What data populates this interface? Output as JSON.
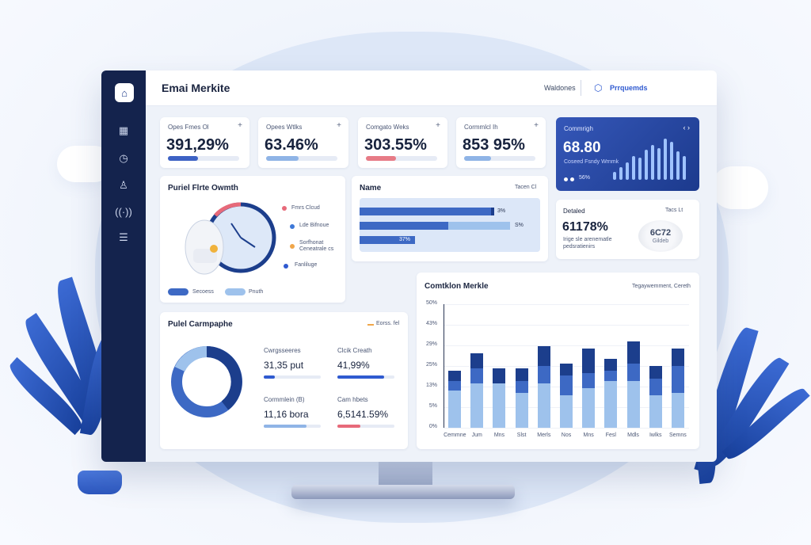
{
  "app": {
    "title": "Emai Merkite"
  },
  "topbar": {
    "link": "Waldones",
    "button": "Prrquemds"
  },
  "kpis": [
    {
      "label": "Opes Fmes Ol",
      "value": "391,29%",
      "progress": 0.42,
      "color": "#3d62c4"
    },
    {
      "label": "Opees Wtlks",
      "value": "63.46%",
      "progress": 0.45,
      "color": "#8fb4e6"
    },
    {
      "label": "Comgato Weks",
      "value": "303.55%",
      "progress": 0.42,
      "color": "#e77b86"
    },
    {
      "label": "Cormmlcl Ih",
      "value": "853 95%",
      "progress": 0.38,
      "color": "#8fb4e6"
    }
  ],
  "featured": {
    "label": "Commrigh",
    "value": "68.80",
    "sub": "Coseed Fsndy Wrnmk",
    "pct": "56%"
  },
  "funnel": {
    "title": "Puriel Flrte Owmth",
    "legend": [
      "Fmrs Clcud",
      "Lde Bifnoue",
      "Sorfhonat Ceneatrale cs",
      "Fanliluge"
    ],
    "legend_colors": [
      "#e76a7a",
      "#3d78d8",
      "#f0a64a",
      "#2f5ad0"
    ],
    "pills": [
      "Secoess",
      "Pnuth"
    ]
  },
  "name_card": {
    "title": "Name",
    "meta": "Tacen Cl",
    "bars": [
      "3%",
      "S%",
      "37%"
    ]
  },
  "detailed": {
    "title": "Detaled",
    "meta": "Tacs Lt",
    "value": "61178%",
    "desc": "Irige sle arenematle pedsratienirs",
    "badge": "6C72",
    "badge_sub": "Gildeb"
  },
  "campaign": {
    "title": "Pulel Carmpaphe",
    "meta": "Eorss. fel",
    "stats": [
      {
        "label": "Cwrgsseeres",
        "value": "31,35 put",
        "progress": 0.2,
        "color": "#2f5ad0"
      },
      {
        "label": "Clcik Creath",
        "value": "41,99%",
        "progress": 0.82,
        "color": "#2f5ad0"
      },
      {
        "label": "Cormmlein (B)",
        "value": "11,16 bora",
        "progress": 0.75,
        "color": "#8fb4e6"
      },
      {
        "label": "Cam hbets",
        "value": "6,5141.59%",
        "progress": 0.4,
        "color": "#e76a7a"
      }
    ]
  },
  "chart": {
    "title": "Comtklon Merkle",
    "meta": "Tegaywemment, Cereth"
  },
  "chart_data": {
    "type": "bar",
    "categories": [
      "Cemmne",
      "Jum",
      "Mns",
      "Slst",
      "Merls",
      "Nos",
      "Mns",
      "Fesl",
      "Mdls",
      "Iwlks",
      "Semns"
    ],
    "series": [
      {
        "values": [
          15,
          18,
          18,
          14,
          18,
          13,
          16,
          19,
          19,
          13,
          14
        ]
      },
      {
        "values": [
          4,
          6,
          0,
          5,
          7,
          8,
          6,
          4,
          7,
          7,
          11
        ]
      },
      {
        "values": [
          4,
          6,
          6,
          5,
          8,
          5,
          10,
          5,
          9,
          5,
          7
        ]
      }
    ],
    "series_colors": [
      "#9ec2ec",
      "#3d69c4",
      "#1c3e8c"
    ],
    "yticks": [
      "0%",
      "5%",
      "13%",
      "25%",
      "29%",
      "43%",
      "50%"
    ],
    "ylim": [
      0,
      50
    ]
  }
}
